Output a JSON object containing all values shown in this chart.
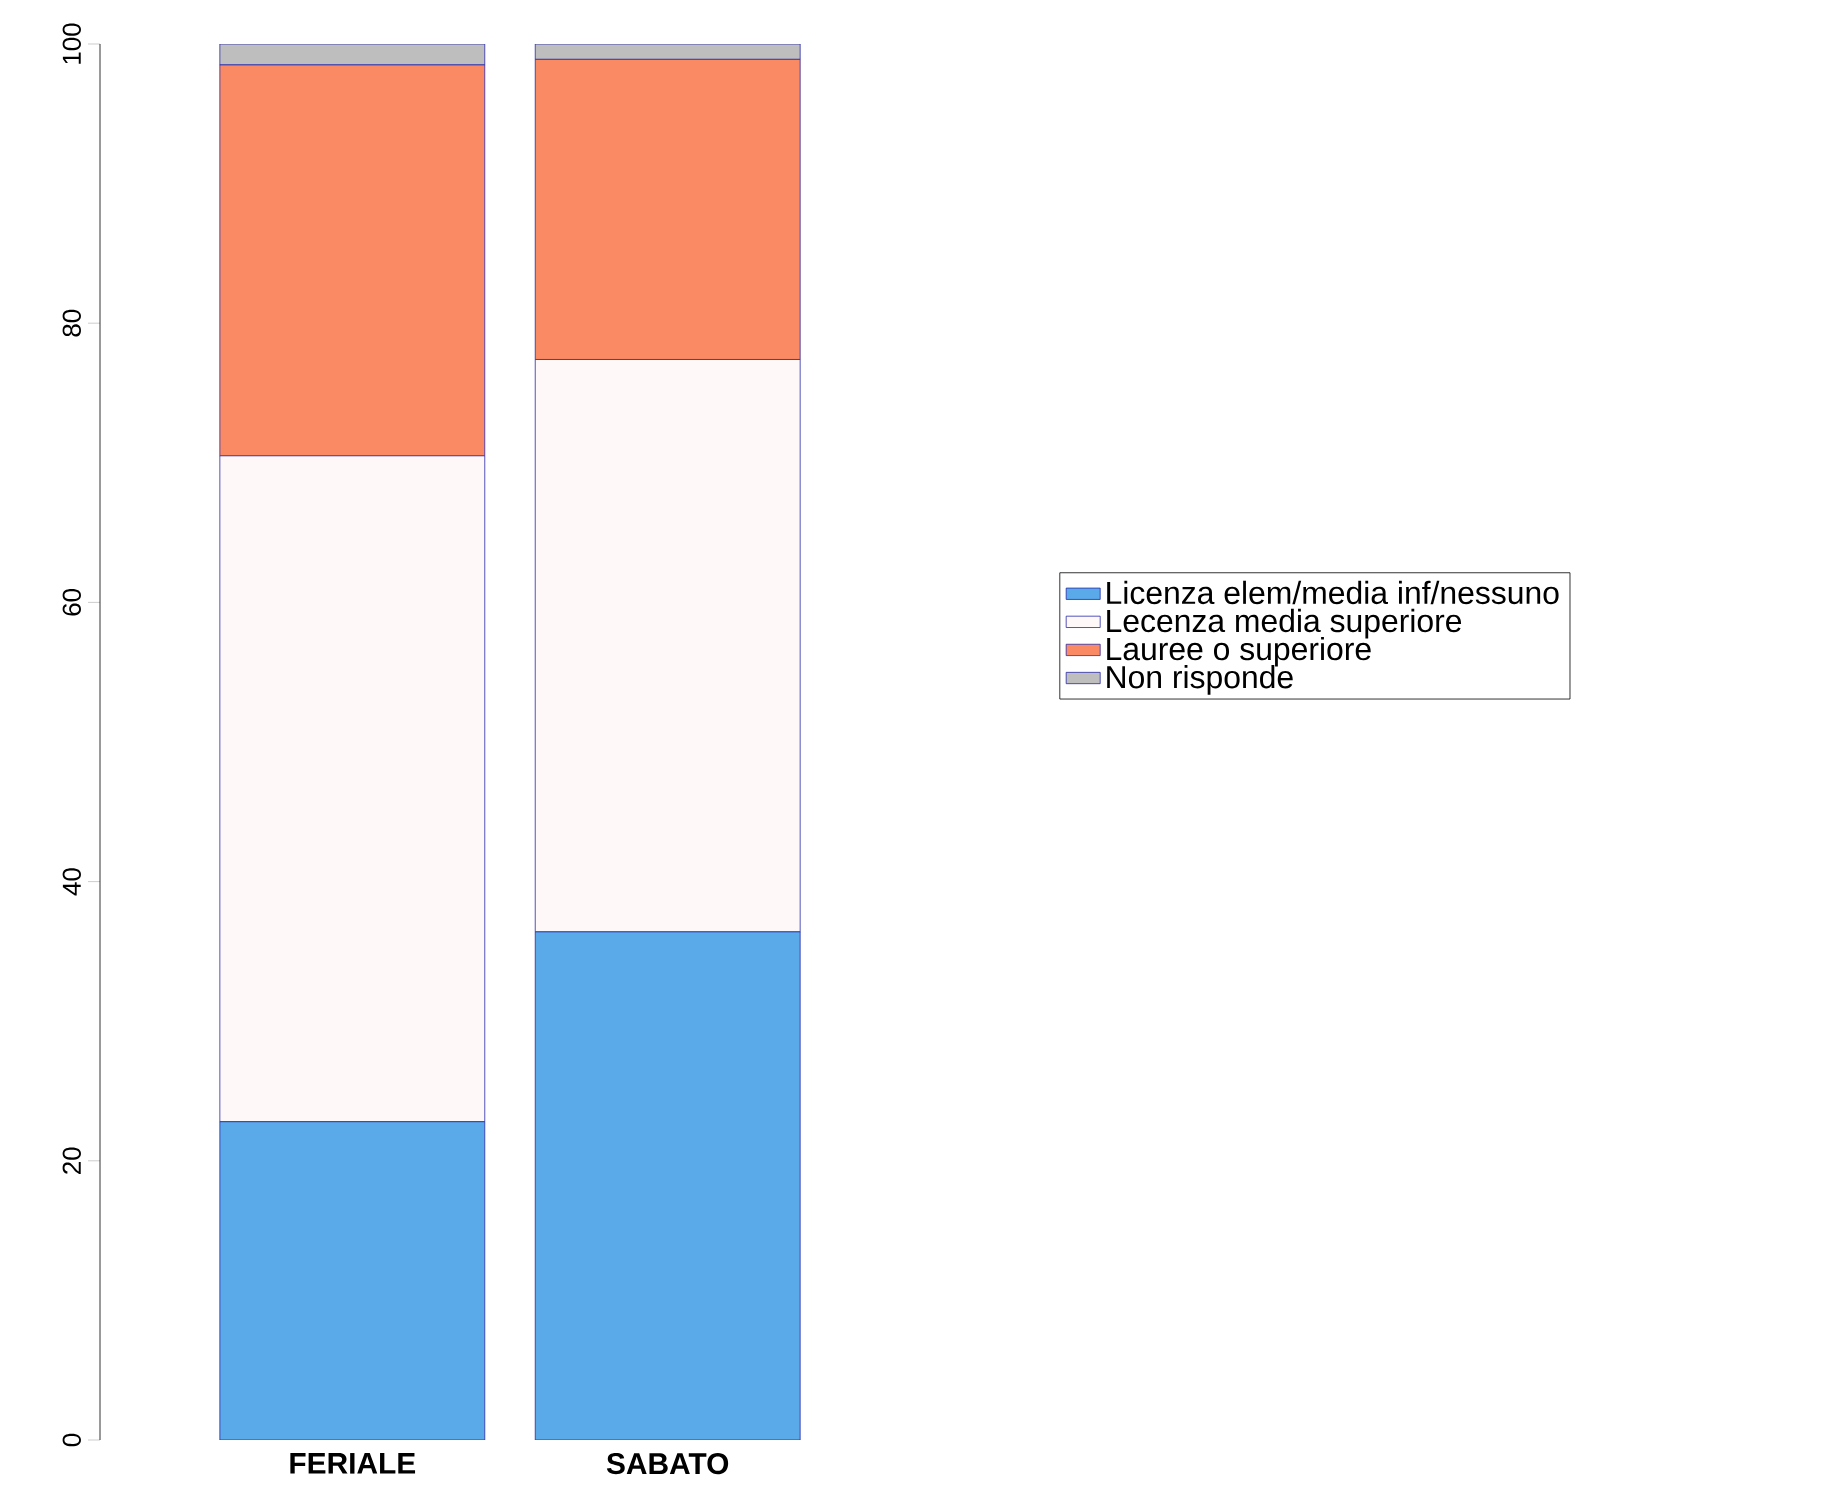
{
  "chart_data": {
    "type": "bar",
    "stacked": true,
    "categories": [
      "FERIALE",
      "SABATO"
    ],
    "series": [
      {
        "name": "Licenza elem/media inf/nessuno",
        "color": "#5aa9e9",
        "values": [
          22.8,
          36.4
        ]
      },
      {
        "name": "Lecenza media superiore",
        "color": "#fff8f8",
        "values": [
          47.7,
          41.0
        ]
      },
      {
        "name": "Lauree o superiore",
        "color": "#fa8a64",
        "values": [
          28.0,
          21.5
        ]
      },
      {
        "name": "Non risponde",
        "color": "#bebebe",
        "values": [
          1.5,
          1.1
        ]
      }
    ],
    "ylim": [
      0,
      100
    ],
    "yticks": [
      0,
      20,
      40,
      60,
      80,
      100
    ],
    "grid": false,
    "legend": "right"
  }
}
